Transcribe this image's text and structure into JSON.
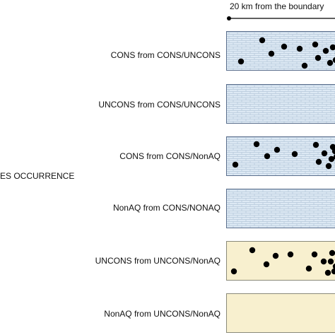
{
  "scale_label": "20 km from the boundary",
  "side_label": "ES OCCURRENCE",
  "colors": {
    "brick_fill": "#dde9f4",
    "brick_line": "#b6c8da",
    "cream_fill": "#f8f0cf",
    "dot": "#000000",
    "border": "#5a6e8c"
  },
  "rows": [
    {
      "label": "CONS from CONS/UNCONS",
      "pattern": "brick",
      "has_dots": true
    },
    {
      "label": "UNCONS from CONS/UNCONS",
      "pattern": "brick",
      "has_dots": false
    },
    {
      "label": "CONS from CONS/NonAQ",
      "pattern": "brick",
      "has_dots": true
    },
    {
      "label": "NonAQ from CONS/NONAQ",
      "pattern": "brick",
      "has_dots": false
    },
    {
      "label": "UNCONS from UNCONS/NonAQ",
      "pattern": "cream",
      "has_dots": true
    },
    {
      "label": "NonAQ from UNCONS/NonAQ",
      "pattern": "cream",
      "has_dots": false
    }
  ]
}
